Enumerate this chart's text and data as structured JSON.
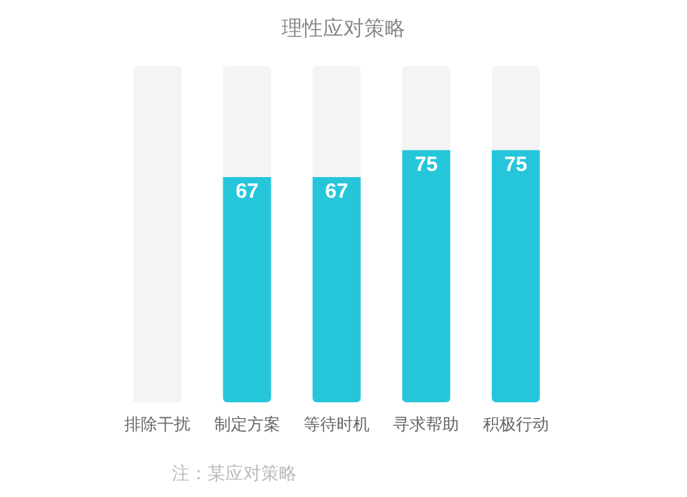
{
  "chart_data": {
    "type": "bar",
    "title": "理性应对策略",
    "stacked": true,
    "categories": [
      "排除干扰",
      "制定方案",
      "等待时机",
      "寻求帮助",
      "积极行动"
    ],
    "series": [
      {
        "color": "#26c6da",
        "values": [
          null,
          67,
          67,
          75,
          75
        ],
        "value_labels": [
          null,
          "67",
          "67",
          "75",
          "75"
        ]
      },
      {
        "color": "#f4f4f4",
        "values": [
          100,
          33,
          33,
          25,
          25
        ],
        "value_labels": [
          null,
          null,
          null,
          null,
          null
        ]
      }
    ],
    "ylim": [
      0,
      100
    ],
    "tick_labels": "x",
    "grid": false,
    "annotations": [
      "注：某应对策略"
    ]
  }
}
